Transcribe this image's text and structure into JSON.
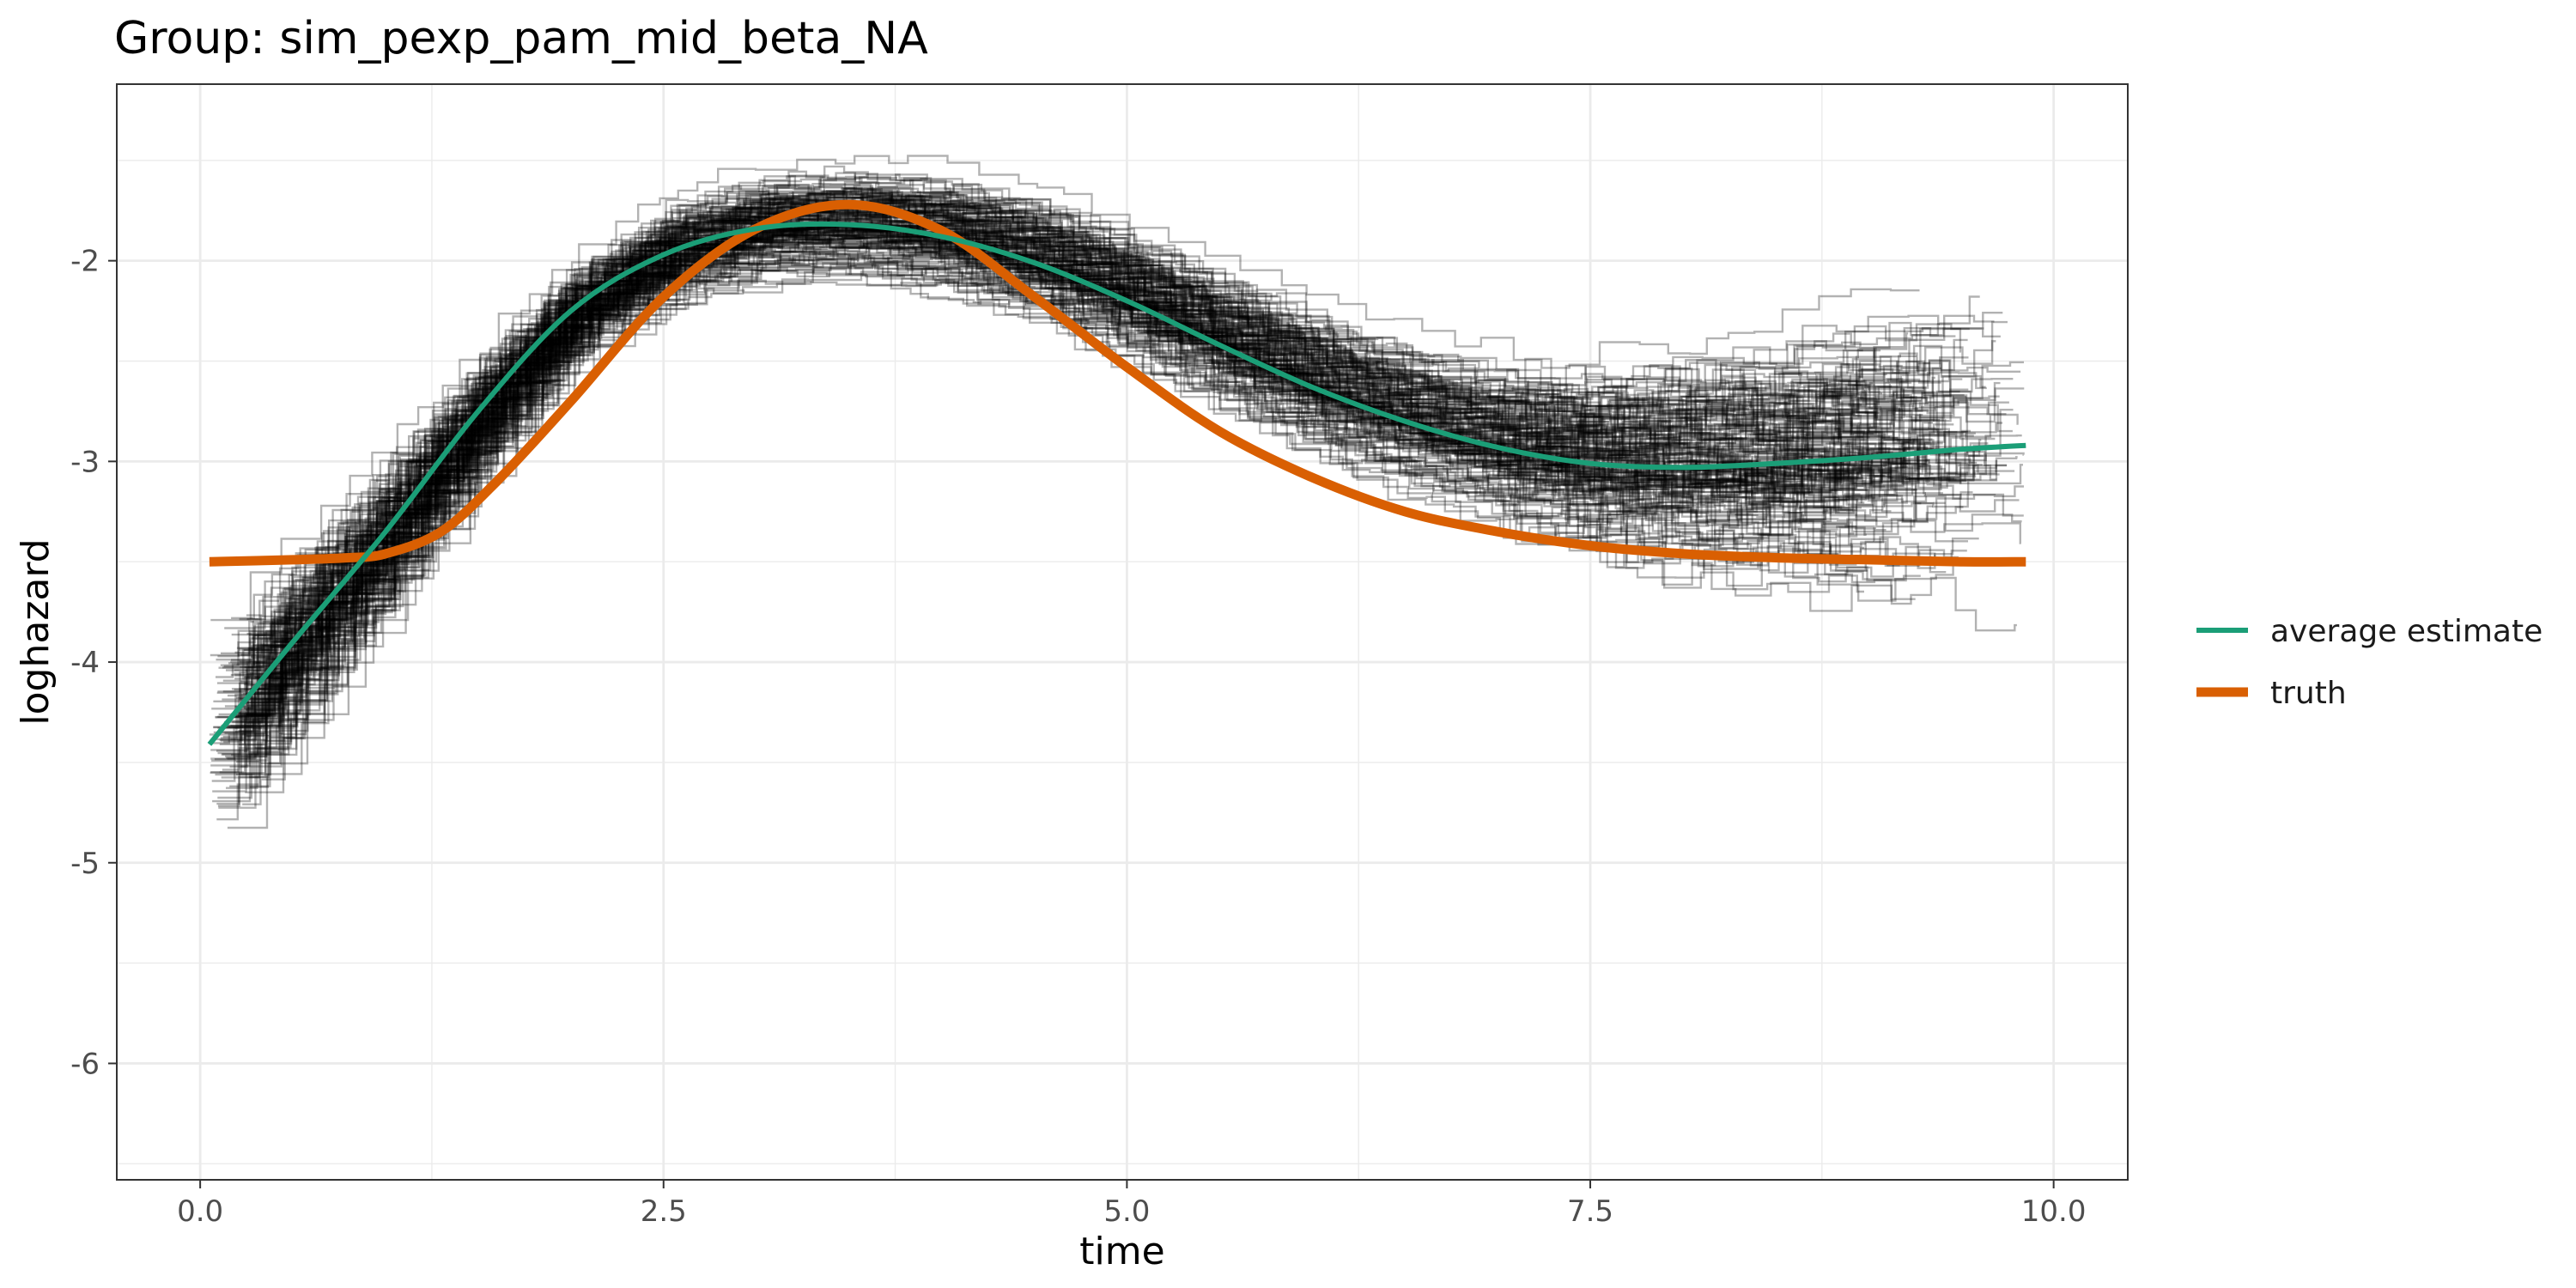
{
  "chart_data": {
    "type": "line",
    "title": "Group: sim_pexp_pam_mid_beta_NA",
    "xlabel": "time",
    "ylabel": "loghazard",
    "xlim": [
      -0.45,
      10.4
    ],
    "ylim": [
      -6.58,
      -1.12
    ],
    "x_ticks": [
      0.0,
      2.5,
      5.0,
      7.5,
      10.0
    ],
    "x_tick_labels": [
      "0.0",
      "2.5",
      "5.0",
      "7.5",
      "10.0"
    ],
    "y_ticks": [
      -6,
      -5,
      -4,
      -3,
      -2
    ],
    "y_tick_labels": [
      "-6",
      "-5",
      "-4",
      "-3",
      "-2"
    ],
    "grid": true,
    "legend_position": "right",
    "background": "#ffffff",
    "grid_color": "#ebebeb",
    "series": [
      {
        "name": "average estimate",
        "color": "#1b9e77",
        "x": [
          0.05,
          0.5,
          1.0,
          1.5,
          2.0,
          2.5,
          3.0,
          3.5,
          4.0,
          4.5,
          5.0,
          5.5,
          6.0,
          6.5,
          7.0,
          7.5,
          8.0,
          8.5,
          9.0,
          9.5,
          9.85
        ],
        "y": [
          -4.41,
          -3.9,
          -3.35,
          -2.75,
          -2.25,
          -1.97,
          -1.84,
          -1.82,
          -1.88,
          -2.01,
          -2.2,
          -2.42,
          -2.63,
          -2.8,
          -2.93,
          -3.01,
          -3.03,
          -3.01,
          -2.98,
          -2.94,
          -2.92
        ]
      },
      {
        "name": "truth",
        "color": "#d95f02",
        "x": [
          0.05,
          0.5,
          0.8,
          1.0,
          1.3,
          1.6,
          2.0,
          2.5,
          3.0,
          3.5,
          4.0,
          4.5,
          5.0,
          5.5,
          6.0,
          6.5,
          7.0,
          7.5,
          8.0,
          8.5,
          9.0,
          9.5,
          9.85
        ],
        "y": [
          -3.5,
          -3.49,
          -3.48,
          -3.46,
          -3.35,
          -3.1,
          -2.7,
          -2.18,
          -1.84,
          -1.72,
          -1.85,
          -2.18,
          -2.53,
          -2.85,
          -3.08,
          -3.25,
          -3.35,
          -3.42,
          -3.46,
          -3.48,
          -3.49,
          -3.5,
          -3.5
        ]
      }
    ],
    "replicate_band": {
      "label": "",
      "color": "#000000",
      "opacity": 0.3,
      "count": 180,
      "step_width": 0.15
    }
  }
}
